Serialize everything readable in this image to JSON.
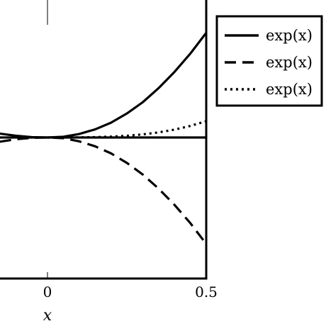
{
  "chart_data": {
    "type": "line",
    "title": "",
    "xlabel": "x",
    "ylabel": "",
    "xlim": [
      -0.15,
      0.5
    ],
    "ylim": [
      -0.4,
      0.4
    ],
    "x_ticks": [
      {
        "value": 0,
        "label": "0"
      },
      {
        "value": 0.5,
        "label": "0.5"
      }
    ],
    "grid": false,
    "legend_position": "outside-top-right",
    "series": [
      {
        "name": "exp(x)",
        "style": "solid",
        "x": [
          -0.15,
          -0.1,
          -0.05,
          0,
          0.05,
          0.1,
          0.15,
          0.2,
          0.25,
          0.3,
          0.35,
          0.4,
          0.45,
          0.5
        ],
        "y": [
          0.011,
          0.005,
          0.001,
          0,
          0.002,
          0.01,
          0.023,
          0.042,
          0.068,
          0.1,
          0.14,
          0.186,
          0.238,
          0.297
        ]
      },
      {
        "name": "exp(x)",
        "style": "dashed",
        "x": [
          -0.15,
          -0.1,
          -0.05,
          0,
          0.05,
          0.1,
          0.15,
          0.2,
          0.25,
          0.3,
          0.35,
          0.4,
          0.45,
          0.5
        ],
        "y": [
          -0.012,
          -0.005,
          -0.001,
          0,
          -0.002,
          -0.011,
          -0.025,
          -0.045,
          -0.072,
          -0.105,
          -0.145,
          -0.191,
          -0.243,
          -0.302
        ]
      },
      {
        "name": "exp(x)",
        "style": "dotted",
        "x": [
          0,
          0.05,
          0.1,
          0.15,
          0.2,
          0.25,
          0.3,
          0.35,
          0.4,
          0.45,
          0.5
        ],
        "y": [
          0,
          0.0001,
          0.0003,
          0.001,
          0.0024,
          0.0049,
          0.0088,
          0.0145,
          0.0223,
          0.0328,
          0.0463
        ]
      },
      {
        "name": "",
        "style": "solid",
        "x": [
          -0.15,
          0.5
        ],
        "y": [
          0,
          0
        ]
      }
    ]
  }
}
